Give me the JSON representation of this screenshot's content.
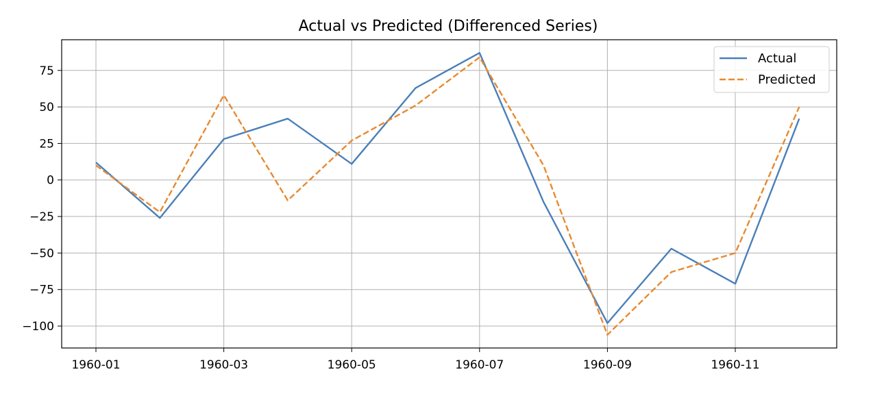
{
  "chart_data": {
    "type": "line",
    "title": "Actual vs Predicted (Differenced Series)",
    "xlabel": "",
    "ylabel": "",
    "x": [
      "1960-01",
      "1960-02",
      "1960-03",
      "1960-04",
      "1960-05",
      "1960-06",
      "1960-07",
      "1960-08",
      "1960-09",
      "1960-10",
      "1960-11",
      "1960-12"
    ],
    "x_tick_labels": [
      "1960-01",
      "1960-03",
      "1960-05",
      "1960-07",
      "1960-09",
      "1960-11"
    ],
    "y_ticks": [
      -100,
      -75,
      -50,
      -25,
      0,
      25,
      50,
      75
    ],
    "y_tick_labels": [
      "−100",
      "−75",
      "−50",
      "−25",
      "0",
      "25",
      "50",
      "75"
    ],
    "ylim": [
      -115,
      96
    ],
    "grid": true,
    "legend_position": "top-right",
    "series": [
      {
        "name": "Actual",
        "color": "#4a7fb8",
        "line_style": "solid",
        "values": [
          12,
          -26,
          28,
          42,
          11,
          63,
          87,
          -15,
          -98,
          -47,
          -71,
          42
        ]
      },
      {
        "name": "Predicted",
        "color": "#e8892f",
        "line_style": "dashed",
        "values": [
          10,
          -22,
          58,
          -14,
          27,
          51,
          84,
          10,
          -106,
          -63,
          -50,
          50
        ]
      }
    ]
  }
}
